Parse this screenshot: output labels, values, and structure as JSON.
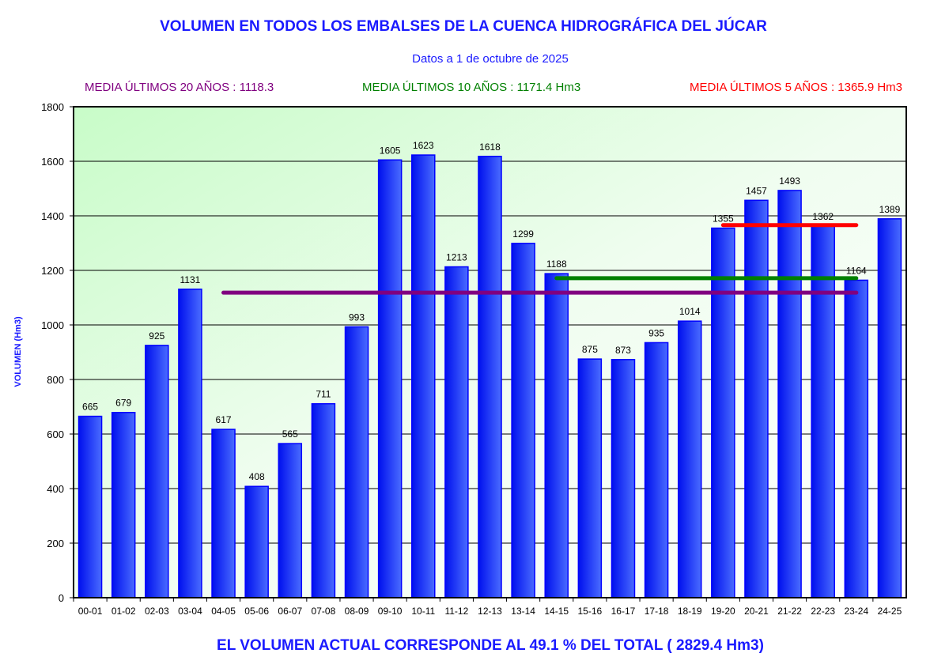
{
  "chart_data": {
    "type": "bar",
    "title": "VOLUMEN EN TODOS LOS EMBALSES DE LA CUENCA HIDROGRÁFICA DEL JÚCAR",
    "subtitle": "Datos a 1 de octubre de 2025",
    "ylabel": "VOLUMEN (Hm3)",
    "xlabel": "",
    "ylim": [
      0,
      1800
    ],
    "yticks": [
      0,
      200,
      400,
      600,
      800,
      1000,
      1200,
      1400,
      1600,
      1800
    ],
    "grid": true,
    "categories": [
      "00-01",
      "01-02",
      "02-03",
      "03-04",
      "04-05",
      "05-06",
      "06-07",
      "07-08",
      "08-09",
      "09-10",
      "10-11",
      "11-12",
      "12-13",
      "13-14",
      "14-15",
      "15-16",
      "16-17",
      "17-18",
      "18-19",
      "19-20",
      "20-21",
      "21-22",
      "22-23",
      "23-24",
      "24-25"
    ],
    "values": [
      665,
      679,
      925,
      1131,
      617,
      408,
      565,
      711,
      993,
      1605,
      1623,
      1213,
      1618,
      1299,
      1188,
      875,
      873,
      935,
      1014,
      1355,
      1457,
      1493,
      1362,
      1164,
      1389
    ],
    "bar_color": "#1f3fff",
    "averages": [
      {
        "label": "MEDIA ÚLTIMOS 20 AÑOS : 1118.3",
        "value": 1118.3,
        "from": "04-05",
        "to": "23-24",
        "color": "#800080"
      },
      {
        "label": "MEDIA ÚLTIMOS 10 AÑOS : 1171.4 Hm3",
        "value": 1171.4,
        "from": "14-15",
        "to": "23-24",
        "color": "#008000"
      },
      {
        "label": "MEDIA ÚLTIMOS 5 AÑOS : 1365.9 Hm3",
        "value": 1365.9,
        "from": "19-20",
        "to": "23-24",
        "color": "#ff0000"
      }
    ],
    "footer": "EL VOLUMEN ACTUAL CORRESPONDE AL 49.1 % DEL TOTAL ( 2829.4 Hm3)"
  }
}
